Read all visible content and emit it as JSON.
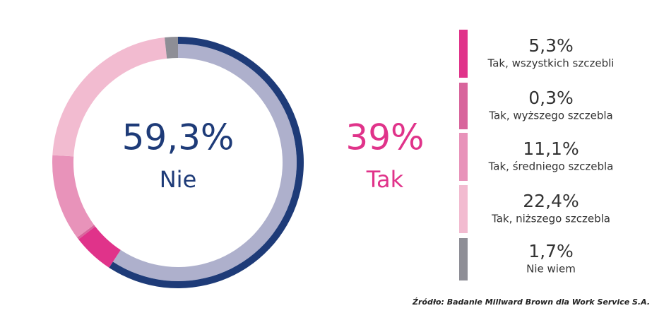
{
  "chart_data": {
    "type": "donut",
    "categories": [
      "Nie",
      "Tak, wszystkich szczebli",
      "Tak, wyższego szczebla",
      "Tak, średniego szczebla",
      "Tak, niższego szczebla",
      "Nie wiem"
    ],
    "values": [
      59.3,
      5.3,
      0.3,
      11.1,
      22.4,
      1.7
    ],
    "value_labels": [
      "59,3%",
      "5,3%",
      "0,3%",
      "11,1%",
      "22,4%",
      "1,7%"
    ],
    "colors": [
      "#1e3b78",
      "#e0338a",
      "#d8659c",
      "#e893ba",
      "#f2bbd0",
      "#8e8e96"
    ],
    "inner_color": "#aeb0cc",
    "group": {
      "name": "Tak",
      "value": 39,
      "value_label": "39%",
      "color": "#e0338a"
    },
    "source": "Źródło: Badanie Millward Brown dla Work Service S.A."
  }
}
